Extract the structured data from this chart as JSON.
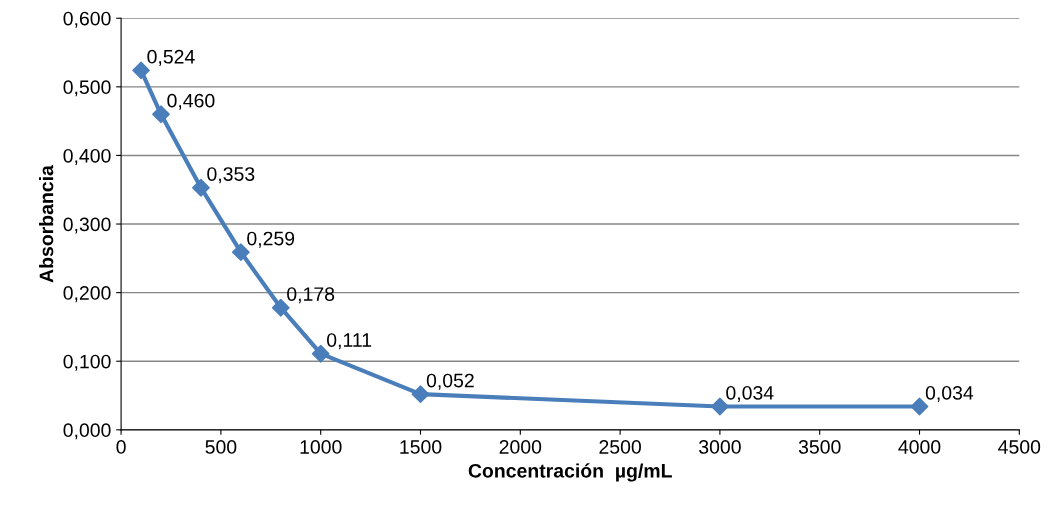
{
  "chart_data": {
    "type": "line",
    "xlabel": "Concentración  µg/mL",
    "ylabel": "Absorbancia",
    "x": [
      100,
      200,
      400,
      600,
      800,
      1000,
      1500,
      3000,
      4000
    ],
    "series": [
      {
        "color": "#4a7ebb",
        "values": [
          0.524,
          0.46,
          0.353,
          0.259,
          0.178,
          0.111,
          0.052,
          0.034,
          0.034
        ],
        "value_labels": [
          "0,524",
          "0,460",
          "0,353",
          "0,259",
          "0,178",
          "0,111",
          "0,052",
          "0,034",
          "0,034"
        ]
      }
    ],
    "xlim": [
      0,
      4500
    ],
    "xticks": [
      0,
      500,
      1000,
      1500,
      2000,
      2500,
      3000,
      3500,
      4000,
      4500
    ],
    "ylim": [
      0,
      0.6
    ],
    "yticks": [
      {
        "value": 0,
        "label": "0,000"
      },
      {
        "value": 0.1,
        "label": "0,100"
      },
      {
        "value": 0.2,
        "label": "0,200"
      },
      {
        "value": 0.3,
        "label": "0,300"
      },
      {
        "value": 0.4,
        "label": "0,400"
      },
      {
        "value": 0.5,
        "label": "0,500"
      },
      {
        "value": 0.6,
        "label": "0,600"
      }
    ],
    "grid": "y",
    "legend": false,
    "marker": "diamond",
    "line_style": "solid"
  }
}
